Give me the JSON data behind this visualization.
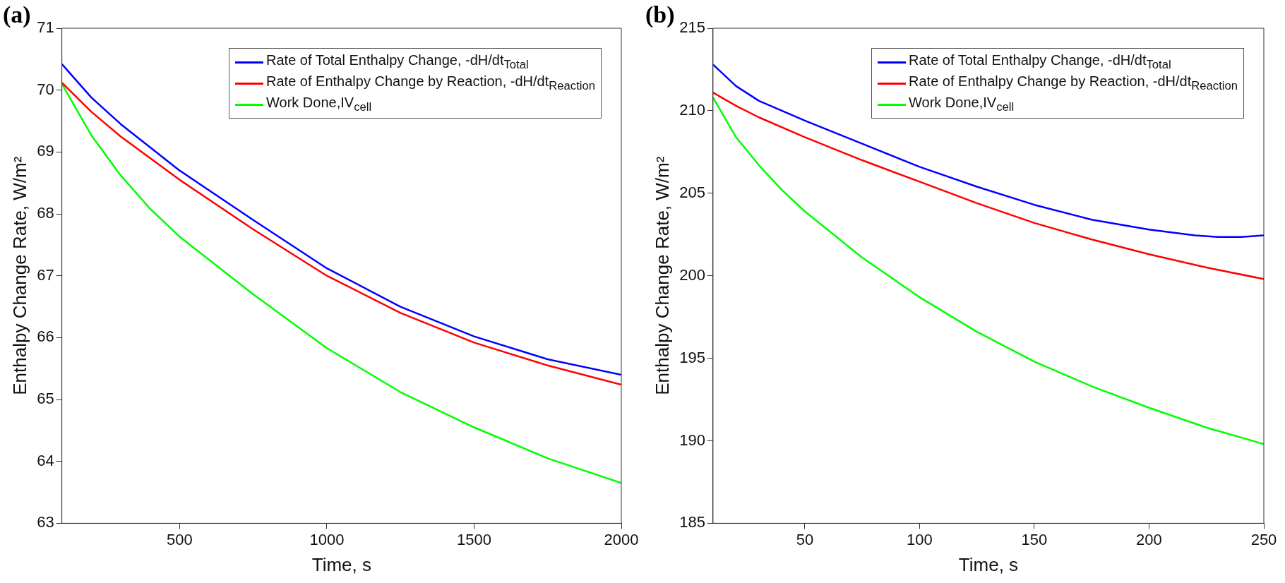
{
  "chart_data": [
    {
      "type": "line",
      "title": "(a)",
      "xlabel": "Time, s",
      "ylabel": "Enthalpy Change Rate, W/m²",
      "xlim": [
        100,
        2000
      ],
      "xticks": [
        500,
        1000,
        1500,
        2000
      ],
      "ylim": [
        63,
        71
      ],
      "yticks": [
        63,
        64,
        65,
        66,
        67,
        68,
        69,
        70,
        71
      ],
      "grid": false,
      "legend": "top right",
      "marker": "none",
      "line_style": "solid",
      "series": [
        {
          "name": "Rate of Total Enthalpy Change, -dH/dt$_{Total}$",
          "color": "#0000ff",
          "x": [
            100,
            200,
            300,
            500,
            750,
            1000,
            1250,
            1500,
            1750,
            2000
          ],
          "values": [
            70.42,
            69.88,
            69.45,
            68.7,
            67.9,
            67.12,
            66.5,
            66.02,
            65.65,
            65.4
          ]
        },
        {
          "name": "Rate of Enthalpy Change by Reaction, -dH/dt$_{Reaction}$",
          "color": "#ff0000",
          "x": [
            100,
            200,
            300,
            500,
            750,
            1000,
            1250,
            1500,
            1750,
            2000
          ],
          "values": [
            70.12,
            69.65,
            69.25,
            68.55,
            67.75,
            67.0,
            66.4,
            65.92,
            65.55,
            65.24
          ]
        },
        {
          "name": "Work Done,IV$_{cell}$",
          "color": "#00ff00",
          "x": [
            100,
            200,
            300,
            400,
            500,
            750,
            1000,
            1250,
            1500,
            1750,
            2000
          ],
          "values": [
            70.1,
            69.27,
            68.62,
            68.08,
            67.63,
            66.7,
            65.83,
            65.12,
            64.55,
            64.05,
            63.65
          ]
        }
      ]
    },
    {
      "type": "line",
      "title": "(b)",
      "xlabel": "Time, s",
      "ylabel": "Enthalpy Change Rate, W/m²",
      "xlim": [
        10,
        250
      ],
      "xticks": [
        50,
        100,
        150,
        200,
        250
      ],
      "ylim": [
        185,
        215
      ],
      "yticks": [
        185,
        190,
        195,
        200,
        205,
        210,
        215
      ],
      "grid": false,
      "legend": "top right",
      "marker": "none",
      "line_style": "solid",
      "series": [
        {
          "name": "Rate of Total Enthalpy Change, -dH/dt$_{Total}$",
          "color": "#0000ff",
          "x": [
            10,
            20,
            30,
            50,
            75,
            100,
            125,
            150,
            175,
            200,
            220,
            230,
            240,
            250
          ],
          "values": [
            212.8,
            211.5,
            210.6,
            209.4,
            208.0,
            206.6,
            205.4,
            204.3,
            203.4,
            202.8,
            202.45,
            202.35,
            202.35,
            202.45
          ]
        },
        {
          "name": "Rate of Enthalpy Change by Reaction, -dH/dt$_{Reaction}$",
          "color": "#ff0000",
          "x": [
            10,
            20,
            30,
            50,
            75,
            100,
            125,
            150,
            175,
            200,
            225,
            250
          ],
          "values": [
            211.1,
            210.3,
            209.6,
            208.4,
            207.0,
            205.7,
            204.4,
            203.2,
            202.2,
            201.3,
            200.5,
            199.8
          ]
        },
        {
          "name": "Work Done,IV$_{cell}$",
          "color": "#00ff00",
          "x": [
            10,
            20,
            30,
            40,
            50,
            75,
            100,
            125,
            150,
            175,
            200,
            225,
            250
          ],
          "values": [
            210.8,
            208.4,
            206.7,
            205.2,
            203.9,
            201.1,
            198.7,
            196.6,
            194.8,
            193.3,
            192.0,
            190.8,
            189.8
          ]
        }
      ]
    }
  ]
}
